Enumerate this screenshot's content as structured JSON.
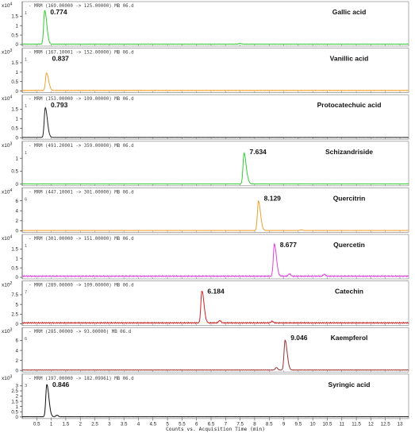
{
  "xaxis": {
    "label": "Counts vs. Acquisition Time (min)",
    "range": [
      0,
      13.3
    ],
    "ticks": [
      0.5,
      1,
      1.5,
      2,
      2.5,
      3,
      3.5,
      4,
      4.5,
      5,
      5.5,
      6,
      6.5,
      7,
      7.5,
      8,
      8.5,
      9,
      9.5,
      10,
      10.5,
      11,
      11.5,
      12,
      12.5,
      13
    ],
    "tick_labels": [
      "0.5",
      "1",
      "1.5",
      "2",
      "2.5",
      "3",
      "3.5",
      "4",
      "4.5",
      "5",
      "5.5",
      "6",
      "6.5",
      "7",
      "7.5",
      "8",
      "8.5",
      "9",
      "9.5",
      "10",
      "10.5",
      "11",
      "11.5",
      "12",
      "12.5",
      "13"
    ]
  },
  "chart_data": [
    {
      "type": "line",
      "header": "- MRM (169.00000 -> 125.00000) MB 06.d",
      "compound": "Gallic acid",
      "peak_label": "0.774",
      "peak_rt": 0.774,
      "exp_prefix": "x10",
      "exponent": "4",
      "y_ticks": [
        0,
        0.5,
        1,
        1.5
      ],
      "y_tick_labels": [
        "0",
        "0.5",
        "1",
        "1.5"
      ],
      "ylim": [
        0,
        1.85
      ],
      "peak_height": 1.78,
      "color": "#33cc33",
      "corner": "1",
      "baseline": 0.02,
      "minor_peaks": [
        {
          "rt": 7.5,
          "h": 0.04
        }
      ]
    },
    {
      "type": "line",
      "header": "- MRM (167.10001 -> 152.00000) MB 06.d",
      "compound": "Vanillic acid",
      "peak_label": "0.837",
      "peak_rt": 0.837,
      "exp_prefix": "x10",
      "exponent": "3",
      "y_ticks": [
        0,
        0.5,
        1,
        1.5
      ],
      "y_tick_labels": [
        "0",
        "0.5",
        "1",
        "1.5"
      ],
      "ylim": [
        0,
        1.85
      ],
      "peak_height": 0.93,
      "color": "#f0a030",
      "corner": "1",
      "baseline": 0.03,
      "minor_peaks": []
    },
    {
      "type": "line",
      "header": "- MRM (153.00000 -> 109.00000) MB 06.d",
      "compound": "Protocatechuic acid",
      "peak_label": "0.793",
      "peak_rt": 0.793,
      "exp_prefix": "x10",
      "exponent": "4",
      "y_ticks": [
        0,
        0.5,
        1,
        1.5
      ],
      "y_tick_labels": [
        "0",
        "0.5",
        "1",
        "1.5"
      ],
      "ylim": [
        0,
        1.85
      ],
      "peak_height": 1.58,
      "color": "#222222",
      "corner": "1",
      "baseline": 0.01,
      "minor_peaks": []
    },
    {
      "type": "line",
      "header": "- MRM (491.20001 -> 359.00000) MB 06.d",
      "compound": "Schizandriside",
      "peak_label": "7.634",
      "peak_rt": 7.634,
      "exp_prefix": "x10",
      "exponent": "3",
      "y_ticks": [
        0,
        0.5,
        1
      ],
      "y_tick_labels": [
        "0",
        "0.5",
        "1"
      ],
      "ylim": [
        0,
        1.35
      ],
      "peak_height": 1.2,
      "color": "#33cc33",
      "corner": "1",
      "baseline": 0.01,
      "minor_peaks": [
        {
          "rt": 7.78,
          "h": 0.06
        }
      ]
    },
    {
      "type": "line",
      "header": "- MRM (447.10001 -> 301.00000) MB 06.d",
      "compound": "Quercitrin",
      "peak_label": "8.129",
      "peak_rt": 8.129,
      "exp_prefix": "x10",
      "exponent": "4",
      "y_ticks": [
        0,
        2,
        4,
        6
      ],
      "y_tick_labels": [
        "0",
        "2",
        "4",
        "6"
      ],
      "ylim": [
        0,
        7
      ],
      "peak_height": 5.9,
      "color": "#f0a030",
      "corner": "6",
      "baseline": 0.05,
      "minor_peaks": [
        {
          "rt": 9.6,
          "h": 0.15
        }
      ]
    },
    {
      "type": "line",
      "header": "- MRM (301.00000 -> 151.00000) MB 06.d",
      "compound": "Quercetin",
      "peak_label": "8.677",
      "peak_rt": 8.677,
      "exp_prefix": "x10",
      "exponent": "4",
      "y_ticks": [
        0,
        0.5,
        1,
        1.5
      ],
      "y_tick_labels": [
        "0",
        "0.5",
        "1",
        "1.5"
      ],
      "ylim": [
        0,
        1.85
      ],
      "peak_height": 1.7,
      "color": "#dd44dd",
      "corner": "1",
      "baseline": 0.06,
      "minor_peaks": [
        {
          "rt": 9.2,
          "h": 0.12
        },
        {
          "rt": 10.4,
          "h": 0.1
        }
      ]
    },
    {
      "type": "line",
      "header": "- MRM (289.00000 -> 109.00000) MB 06.d",
      "compound": "Catechin",
      "peak_label": "6.184",
      "peak_rt": 6.184,
      "exp_prefix": "x10",
      "exponent": "2",
      "y_ticks": [
        0,
        2.5,
        5,
        7.5
      ],
      "y_tick_labels": [
        "0",
        "2.5",
        "5",
        "7.5"
      ],
      "ylim": [
        0,
        9
      ],
      "peak_height": 8.3,
      "color": "#cc2222",
      "corner": "7",
      "baseline": 0.25,
      "minor_peaks": [
        {
          "rt": 6.8,
          "h": 0.6
        },
        {
          "rt": 8.6,
          "h": 0.4
        }
      ]
    },
    {
      "type": "line",
      "header": "- MRM (285.00000 -> 93.00000) MB 06.d",
      "compound": "Kaempferol",
      "peak_label": "9.046",
      "peak_rt": 9.046,
      "exp_prefix": "x10",
      "exponent": "3",
      "y_ticks": [
        0,
        2,
        4,
        6
      ],
      "y_tick_labels": [
        "0",
        "2",
        "4",
        "6"
      ],
      "ylim": [
        0,
        7
      ],
      "peak_height": 6.0,
      "color": "#993333",
      "corner": "6",
      "baseline": 0.08,
      "minor_peaks": [
        {
          "rt": 8.75,
          "h": 0.5
        }
      ]
    },
    {
      "type": "line",
      "header": "- MRM (197.00000 -> 182.09961) MB 06.d",
      "compound": "Syringic acid",
      "peak_label": "0.846",
      "peak_rt": 0.846,
      "exp_prefix": "x10",
      "exponent": "3",
      "y_ticks": [
        0,
        0.5,
        1,
        1.5,
        2,
        2.5,
        3
      ],
      "y_tick_labels": [
        "0",
        "0.5",
        "1",
        "1.5",
        "2",
        "2.5",
        "3"
      ],
      "ylim": [
        0,
        3.35
      ],
      "peak_height": 3.1,
      "color": "#111111",
      "corner": "3",
      "baseline": 0.02,
      "minor_peaks": [
        {
          "rt": 1.2,
          "h": 0.15
        }
      ]
    }
  ]
}
